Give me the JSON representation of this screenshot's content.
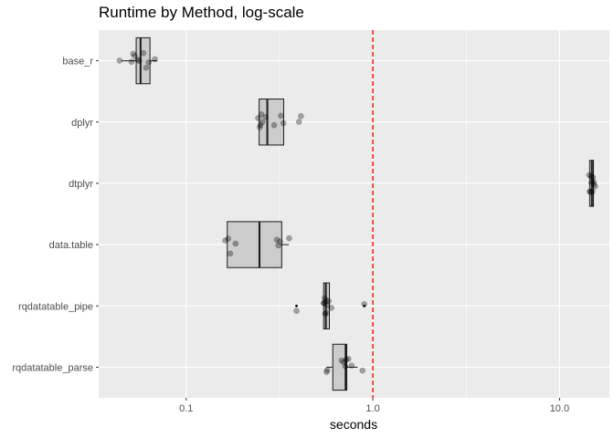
{
  "chart_data": {
    "type": "boxplot",
    "title": "Runtime by Method, log-scale",
    "xlabel": "seconds",
    "ylabel": "",
    "x_scale": "log10",
    "xlim": [
      0.034,
      18.5
    ],
    "x_ticks": [
      0.1,
      1.0,
      10.0
    ],
    "x_tick_labels": [
      "0.1",
      "1.0",
      "10.0"
    ],
    "grid": true,
    "legend": "none",
    "reference_line": {
      "x": 1.0,
      "color": "#ff0000",
      "style": "dashed"
    },
    "categories": [
      "base_r",
      "dplyr",
      "dtplyr",
      "data.table",
      "rqdatatable_pipe",
      "rqdatatable_parse"
    ],
    "boxes": [
      {
        "name": "base_r",
        "whisker_low": 0.045,
        "q1": 0.054,
        "median": 0.057,
        "q3": 0.064,
        "whisker_high": 0.07,
        "outliers": []
      },
      {
        "name": "dplyr",
        "whisker_low": 0.246,
        "q1": 0.246,
        "median": 0.272,
        "q3": 0.333,
        "whisker_high": 0.333,
        "outliers": []
      },
      {
        "name": "dtplyr",
        "whisker_low": 14.3,
        "q1": 14.5,
        "median": 14.9,
        "q3": 15.2,
        "whisker_high": 15.3,
        "outliers": []
      },
      {
        "name": "data.table",
        "whisker_low": 0.166,
        "q1": 0.166,
        "median": 0.247,
        "q3": 0.325,
        "whisker_high": 0.355,
        "outliers": []
      },
      {
        "name": "rqdatatable_pipe",
        "whisker_low": 0.545,
        "q1": 0.545,
        "median": 0.56,
        "q3": 0.585,
        "whisker_high": 0.585,
        "outliers": [
          0.39,
          0.9
        ]
      },
      {
        "name": "rqdatatable_parse",
        "whisker_low": 0.565,
        "q1": 0.61,
        "median": 0.715,
        "q3": 0.725,
        "whisker_high": 0.83,
        "outliers": []
      }
    ],
    "points": [
      {
        "name": "base_r",
        "x": [
          0.044,
          0.051,
          0.052,
          0.053,
          0.055,
          0.056,
          0.059,
          0.061,
          0.063,
          0.068
        ]
      },
      {
        "name": "dplyr",
        "x": [
          0.243,
          0.248,
          0.25,
          0.253,
          0.256,
          0.266,
          0.296,
          0.322,
          0.332,
          0.402,
          0.412
        ]
      },
      {
        "name": "dtplyr",
        "x": [
          14.4,
          14.5,
          14.6,
          14.8,
          14.9,
          15.0,
          15.1,
          15.2,
          15.3,
          15.5
        ]
      },
      {
        "name": "data.table",
        "x": [
          0.162,
          0.168,
          0.172,
          0.184,
          0.306,
          0.312,
          0.318,
          0.356
        ]
      },
      {
        "name": "rqdatatable_pipe",
        "x": [
          0.39,
          0.545,
          0.548,
          0.552,
          0.555,
          0.56,
          0.565,
          0.57,
          0.58,
          0.6,
          0.9
        ]
      },
      {
        "name": "rqdatatable_parse",
        "x": [
          0.565,
          0.57,
          0.68,
          0.7,
          0.712,
          0.72,
          0.74,
          0.77,
          0.88
        ]
      }
    ]
  }
}
